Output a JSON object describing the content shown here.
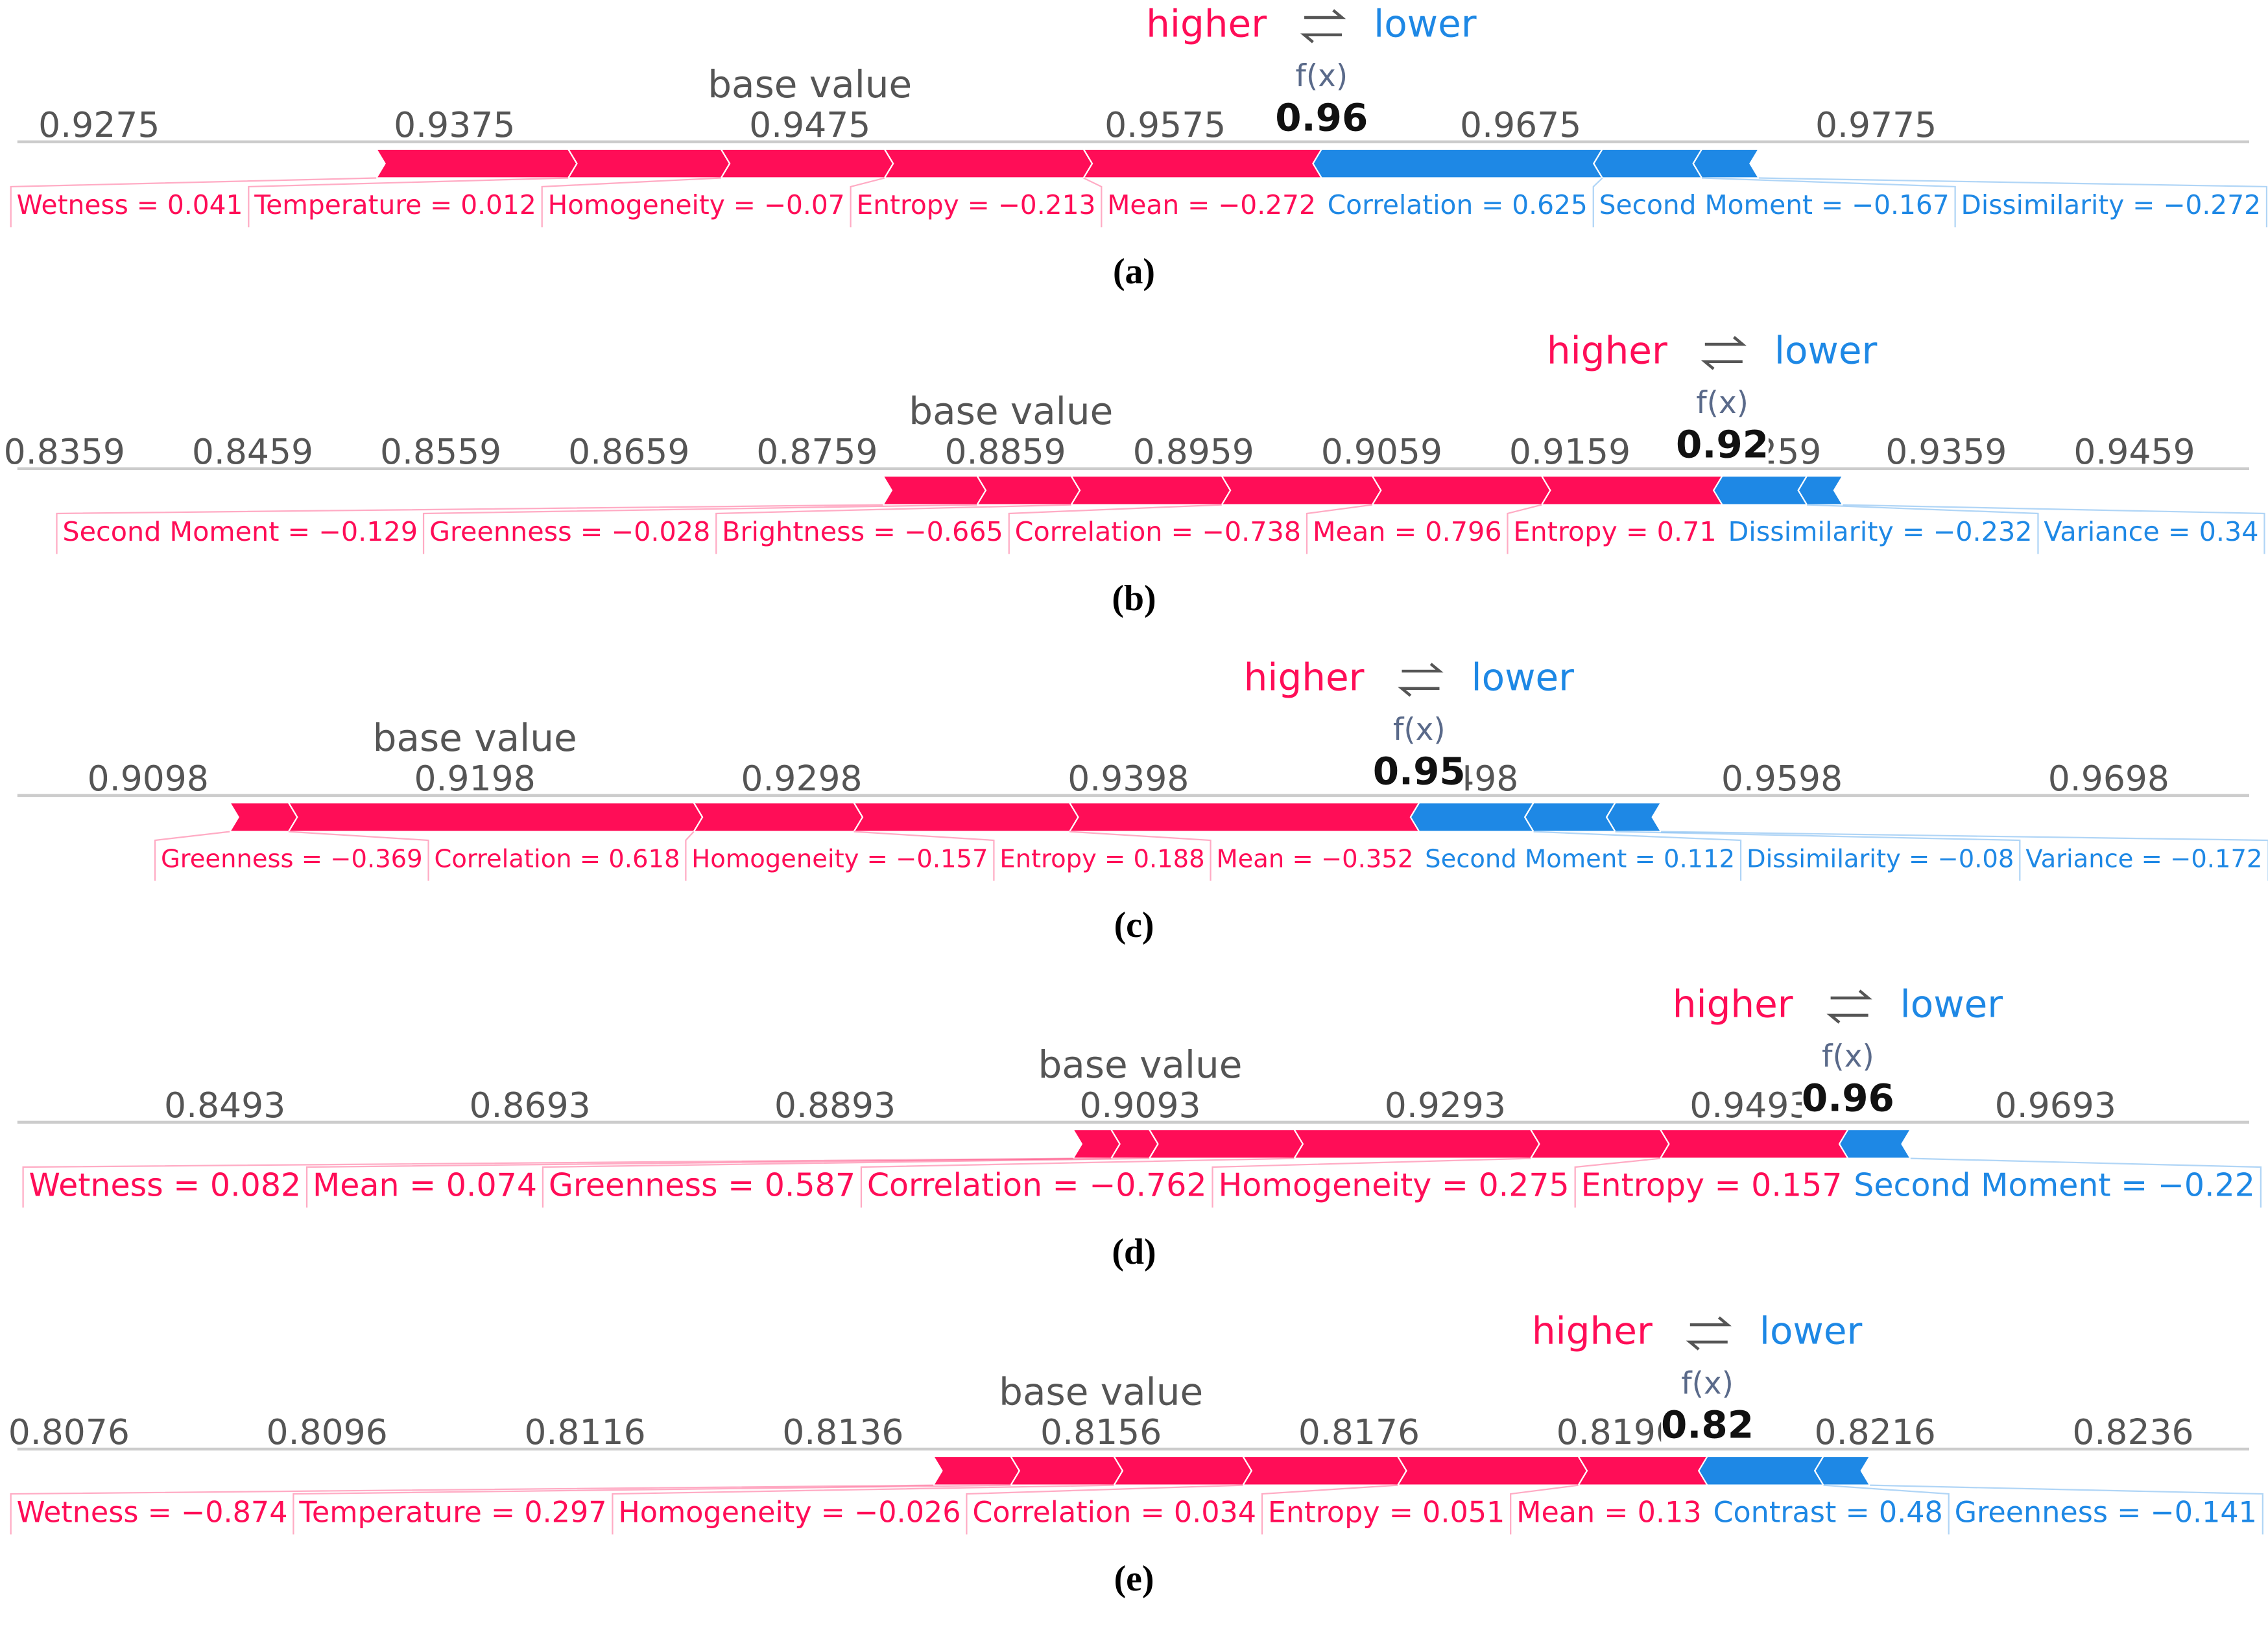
{
  "chart_data": [
    {
      "type": "force",
      "panel_label": "(a)",
      "higher_label": "higher",
      "lower_label": "lower",
      "fx_label": "f(x)",
      "base_label": "base value",
      "base_value": 0.9475,
      "output_value": 0.9619,
      "output_label": "0.96",
      "xlim": [
        0.9252,
        0.988
      ],
      "xticks": [
        0.9275,
        0.9375,
        0.9475,
        0.9575,
        0.9675,
        0.9775
      ],
      "positive": {
        "color": "#ff0d57",
        "features": [
          "Wetness = 0.041",
          "Temperature = 0.012",
          "Homogeneity = −0.07",
          "Entropy = −0.213",
          "Mean = −0.272"
        ],
        "values": [
          0.0054,
          0.0043,
          0.0046,
          0.0056,
          0.0067
        ]
      },
      "negative": {
        "color": "#1e88e5",
        "features": [
          "Correlation = 0.625",
          "Second Moment = −0.167",
          "Dissimilarity = −0.272"
        ],
        "values": [
          0.0079,
          0.0028,
          0.0016
        ]
      }
    },
    {
      "type": "force",
      "panel_label": "(b)",
      "higher_label": "higher",
      "lower_label": "lower",
      "fx_label": "f(x)",
      "base_label": "base value",
      "base_value": 0.8862,
      "output_value": 0.924,
      "output_label": "0.92",
      "xlim": [
        0.8334,
        0.952
      ],
      "xticks": [
        0.8359,
        0.8459,
        0.8559,
        0.8659,
        0.8759,
        0.8859,
        0.8959,
        0.9059,
        0.9159,
        {
          "value": 0.9259,
          "label": "259"
        },
        0.9359,
        0.9459
      ],
      "positive": {
        "color": "#ff0d57",
        "features": [
          "Second Moment = −0.129",
          "Greenness = −0.028",
          "Brightness = −0.665",
          "Correlation = −0.738",
          "Mean = 0.796",
          "Entropy = 0.71"
        ],
        "values": [
          0.005,
          0.005,
          0.008,
          0.008,
          0.009,
          0.0096
        ]
      },
      "negative": {
        "color": "#1e88e5",
        "features": [
          "Dissimilarity = −0.232",
          "Variance = 0.34"
        ],
        "values": [
          0.0045,
          0.0019
        ]
      }
    },
    {
      "type": "force",
      "panel_label": "(c)",
      "higher_label": "higher",
      "lower_label": "lower",
      "fx_label": "f(x)",
      "base_label": "base value",
      "base_value": 0.9198,
      "output_value": 0.9487,
      "output_label": "0.95",
      "xlim": [
        0.9058,
        0.9741
      ],
      "xticks": [
        0.9098,
        0.9198,
        0.9298,
        0.9398,
        {
          "value": 0.9498,
          "label": "498"
        },
        0.9598,
        0.9698
      ],
      "positive": {
        "color": "#ff0d57",
        "features": [
          "Greenness = −0.369",
          "Correlation = 0.618",
          "Homogeneity = −0.157",
          "Entropy = 0.188",
          "Mean = −0.352"
        ],
        "values": [
          0.0018,
          0.0124,
          0.0049,
          0.0066,
          0.0107
        ]
      },
      "negative": {
        "color": "#1e88e5",
        "features": [
          "Second Moment = 0.112",
          "Dissimilarity = −0.08",
          "Variance = −0.172"
        ],
        "values": [
          0.0035,
          0.0025,
          0.0014
        ]
      }
    },
    {
      "type": "force",
      "panel_label": "(d)",
      "higher_label": "higher",
      "lower_label": "lower",
      "fx_label": "f(x)",
      "base_label": "base value",
      "base_value": 0.9093,
      "output_value": 0.9557,
      "output_label": "0.96",
      "xlim": [
        0.8357,
        0.982
      ],
      "xticks": [
        0.8493,
        0.8693,
        0.8893,
        0.9093,
        0.9293,
        0.9493,
        0.9693
      ],
      "positive": {
        "color": "#ff0d57",
        "features": [
          "Wetness = 0.082",
          "Mean = 0.074",
          "Greenness = 0.587",
          "Correlation = −0.762",
          "Homogeneity = 0.275",
          "Entropy = 0.157"
        ],
        "values": [
          0.0025,
          0.0025,
          0.0095,
          0.0155,
          0.0085,
          0.0123
        ]
      },
      "negative": {
        "color": "#1e88e5",
        "features": [
          "Second Moment = −0.22"
        ],
        "values": [
          0.0041
        ]
      }
    },
    {
      "type": "force",
      "panel_label": "(e)",
      "higher_label": "higher",
      "lower_label": "lower",
      "fx_label": "f(x)",
      "base_label": "base value",
      "base_value": 0.8156,
      "output_value": 0.8203,
      "output_label": "0.82",
      "xlim": [
        0.8072,
        0.8245
      ],
      "xticks": [
        0.8076,
        0.8096,
        0.8116,
        0.8136,
        0.8156,
        0.8176,
        0.8196,
        0.8216,
        0.8236
      ],
      "positive": {
        "color": "#ff0d57",
        "features": [
          "Wetness = −0.874",
          "Temperature = 0.297",
          "Homogeneity = −0.026",
          "Correlation = 0.034",
          "Entropy = 0.051",
          "Mean = 0.13"
        ],
        "values": [
          0.0006,
          0.0008,
          0.001,
          0.0012,
          0.0014,
          0.001
        ]
      },
      "negative": {
        "color": "#1e88e5",
        "features": [
          "Contrast = 0.48",
          "Greenness = −0.141"
        ],
        "values": [
          0.0009,
          0.00036
        ]
      }
    }
  ]
}
